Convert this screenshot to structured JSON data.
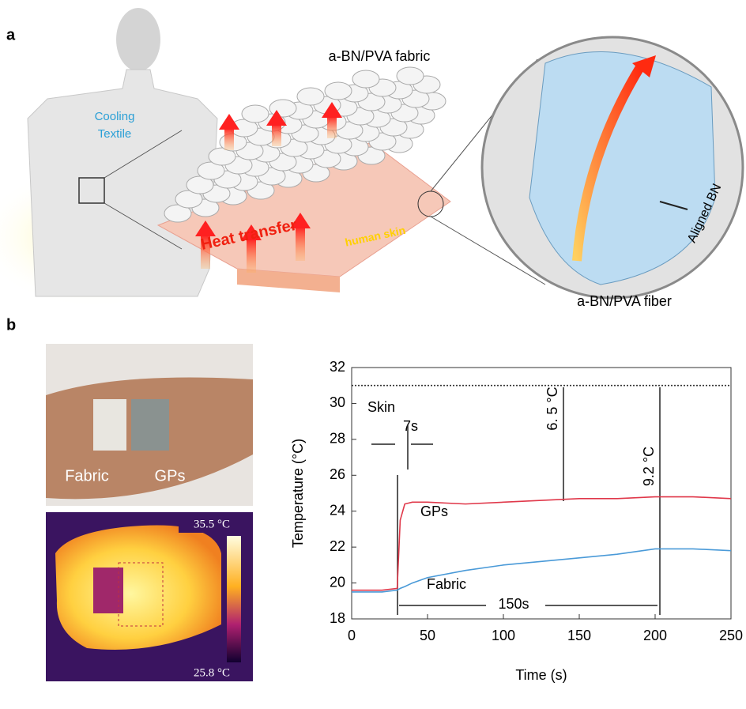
{
  "figure": {
    "panel_a": {
      "label": "a",
      "fabric_label": "a-BN/PVA fabric",
      "textile_label": [
        "Cooling",
        "Textile"
      ],
      "heat_label": "Heat transfer",
      "skin_label": "human skin",
      "aligned_label": "Aligned BN",
      "fiber_label": "a-BN/PVA fiber"
    },
    "panel_b": {
      "label": "b",
      "photo_labels": [
        "Fabric",
        "GPs"
      ],
      "thermal_max": "35.5 °C",
      "thermal_min": "25.8 °C"
    }
  },
  "chart_data": {
    "type": "line",
    "xlabel": "Time (s)",
    "ylabel": "Temperature (°C)",
    "x": [
      0,
      10,
      20,
      30,
      32,
      35,
      40,
      50,
      75,
      100,
      125,
      150,
      175,
      200,
      225,
      250
    ],
    "series": [
      {
        "name": "Skin",
        "color": "#333333",
        "values": [
          31,
          31,
          31,
          31,
          31,
          31,
          31,
          31,
          31,
          31,
          31,
          31,
          31,
          31,
          31,
          31
        ]
      },
      {
        "name": "GPs",
        "color": "#e0384a",
        "values": [
          19.6,
          19.6,
          19.6,
          19.7,
          23.5,
          24.4,
          24.5,
          24.5,
          24.4,
          24.5,
          24.6,
          24.7,
          24.7,
          24.8,
          24.8,
          24.7
        ]
      },
      {
        "name": "Fabric",
        "color": "#4a9ad8",
        "values": [
          19.5,
          19.5,
          19.5,
          19.6,
          19.7,
          19.8,
          20.0,
          20.3,
          20.7,
          21.0,
          21.2,
          21.4,
          21.6,
          21.9,
          21.9,
          21.8
        ]
      }
    ],
    "xlim": [
      0,
      250
    ],
    "ylim": [
      18,
      32
    ],
    "xticks": [
      0,
      50,
      100,
      150,
      200,
      250
    ],
    "yticks": [
      18,
      20,
      22,
      24,
      26,
      28,
      30,
      32
    ],
    "annotations": [
      "7s",
      "6. 5 °C",
      "9.2 °C",
      "150s"
    ]
  }
}
